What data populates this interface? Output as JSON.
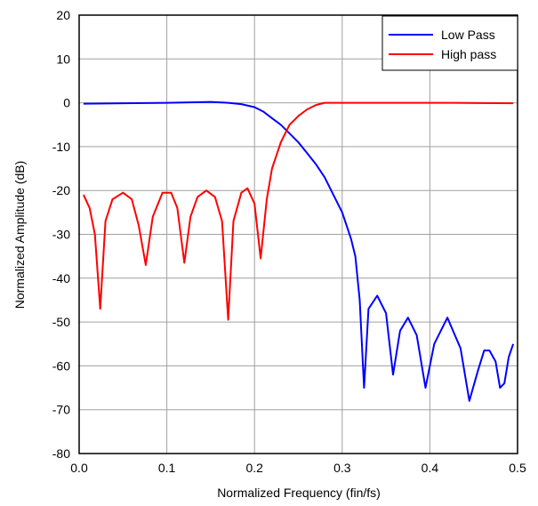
{
  "chart_data": {
    "type": "line",
    "title": "",
    "xlabel": "Normalized Frequency (fin/fs)",
    "ylabel": "Normalized Amplitude (dB)",
    "xlim": [
      0,
      0.5
    ],
    "ylim": [
      -80,
      20
    ],
    "x_ticks": [
      0,
      0.1,
      0.2,
      0.3,
      0.4,
      0.5
    ],
    "x_tick_labels": [
      "0.0",
      "0.1",
      "0.2",
      "0.3",
      "0.4",
      "0.5"
    ],
    "y_ticks": [
      20,
      10,
      0,
      -10,
      -20,
      -30,
      -40,
      -50,
      -60,
      -70,
      -80
    ],
    "y_tick_labels": [
      "20",
      "10",
      "0",
      "-10",
      "-20",
      "-30",
      "-40",
      "-50",
      "-60",
      "-70",
      "-80"
    ],
    "grid": true,
    "legend_position": "top-right",
    "series": [
      {
        "name": "Low Pass",
        "color": "#0000ff",
        "points": [
          [
            0.005,
            -0.2
          ],
          [
            0.05,
            -0.1
          ],
          [
            0.1,
            0
          ],
          [
            0.15,
            0.2
          ],
          [
            0.17,
            0
          ],
          [
            0.185,
            -0.3
          ],
          [
            0.2,
            -1
          ],
          [
            0.21,
            -2
          ],
          [
            0.22,
            -3.5
          ],
          [
            0.23,
            -5
          ],
          [
            0.24,
            -7
          ],
          [
            0.25,
            -9
          ],
          [
            0.26,
            -11.5
          ],
          [
            0.27,
            -14
          ],
          [
            0.28,
            -17
          ],
          [
            0.29,
            -21
          ],
          [
            0.3,
            -25
          ],
          [
            0.31,
            -31
          ],
          [
            0.315,
            -35
          ],
          [
            0.32,
            -45
          ],
          [
            0.325,
            -65
          ],
          [
            0.33,
            -47
          ],
          [
            0.34,
            -44
          ],
          [
            0.35,
            -48
          ],
          [
            0.358,
            -62
          ],
          [
            0.366,
            -52
          ],
          [
            0.375,
            -49
          ],
          [
            0.385,
            -53
          ],
          [
            0.395,
            -65
          ],
          [
            0.405,
            -55
          ],
          [
            0.42,
            -49
          ],
          [
            0.435,
            -56
          ],
          [
            0.445,
            -68
          ],
          [
            0.455,
            -61
          ],
          [
            0.462,
            -56.5
          ],
          [
            0.468,
            -56.5
          ],
          [
            0.475,
            -59
          ],
          [
            0.48,
            -65
          ],
          [
            0.485,
            -64
          ],
          [
            0.49,
            -58
          ],
          [
            0.495,
            -55
          ]
        ]
      },
      {
        "name": "High pass",
        "color": "#ff0000",
        "points": [
          [
            0.005,
            -21
          ],
          [
            0.012,
            -24
          ],
          [
            0.018,
            -30
          ],
          [
            0.024,
            -47
          ],
          [
            0.03,
            -27
          ],
          [
            0.038,
            -22
          ],
          [
            0.05,
            -20.5
          ],
          [
            0.06,
            -22
          ],
          [
            0.068,
            -28
          ],
          [
            0.076,
            -37
          ],
          [
            0.084,
            -26
          ],
          [
            0.095,
            -20.5
          ],
          [
            0.105,
            -20.5
          ],
          [
            0.112,
            -24
          ],
          [
            0.12,
            -36.5
          ],
          [
            0.127,
            -26
          ],
          [
            0.135,
            -21.5
          ],
          [
            0.145,
            -20
          ],
          [
            0.155,
            -21.5
          ],
          [
            0.163,
            -27
          ],
          [
            0.17,
            -49.5
          ],
          [
            0.176,
            -27
          ],
          [
            0.185,
            -20.5
          ],
          [
            0.192,
            -19.5
          ],
          [
            0.2,
            -23
          ],
          [
            0.207,
            -35.5
          ],
          [
            0.214,
            -22
          ],
          [
            0.22,
            -15
          ],
          [
            0.23,
            -9
          ],
          [
            0.24,
            -5
          ],
          [
            0.25,
            -3
          ],
          [
            0.26,
            -1.5
          ],
          [
            0.27,
            -0.5
          ],
          [
            0.28,
            0
          ],
          [
            0.35,
            0
          ],
          [
            0.42,
            0
          ],
          [
            0.495,
            -0.1
          ]
        ]
      }
    ]
  }
}
